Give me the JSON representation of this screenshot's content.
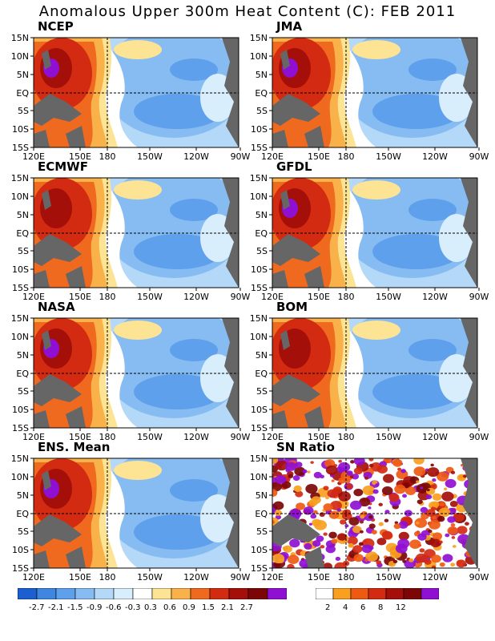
{
  "title": "Anomalous Upper 300m Heat Content (C): FEB 2011",
  "panels": [
    {
      "name": "NCEP"
    },
    {
      "name": "JMA"
    },
    {
      "name": "ECMWF"
    },
    {
      "name": "GFDL"
    },
    {
      "name": "NASA"
    },
    {
      "name": "BOM"
    },
    {
      "name": "ENS. Mean"
    },
    {
      "name": "SN Ratio"
    }
  ],
  "axes": {
    "y_ticks": [
      "15N",
      "10N",
      "5N",
      "EQ",
      "5S",
      "10S",
      "15S"
    ],
    "x_ticks": [
      "120E",
      "150E",
      "180",
      "150W",
      "120W",
      "90W"
    ]
  },
  "colorbar_anomaly": {
    "labels": [
      "-2.7",
      "-2.1",
      "-1.5",
      "-0.9",
      "-0.6",
      "-0.3",
      "0.3",
      "0.6",
      "0.9",
      "1.5",
      "2.1",
      "2.7"
    ],
    "colors": [
      "#1b5fd0",
      "#3f86e0",
      "#5fa0ec",
      "#86bcf2",
      "#b4d8f8",
      "#d8eefc",
      "#ffffff",
      "#fde394",
      "#f9b24a",
      "#ef6a1f",
      "#d32a12",
      "#a50f0a",
      "#7c0606",
      "#8f0fd3"
    ]
  },
  "colorbar_sn": {
    "labels": [
      "2",
      "4",
      "6",
      "8",
      "12"
    ],
    "colors": [
      "#ffffff",
      "#f9a01f",
      "#ef5a12",
      "#d32a12",
      "#a50f0a",
      "#7c0606",
      "#8f0fd3"
    ]
  },
  "colors": {
    "land": "#666666",
    "warm_core": "#8f0fd3"
  }
}
